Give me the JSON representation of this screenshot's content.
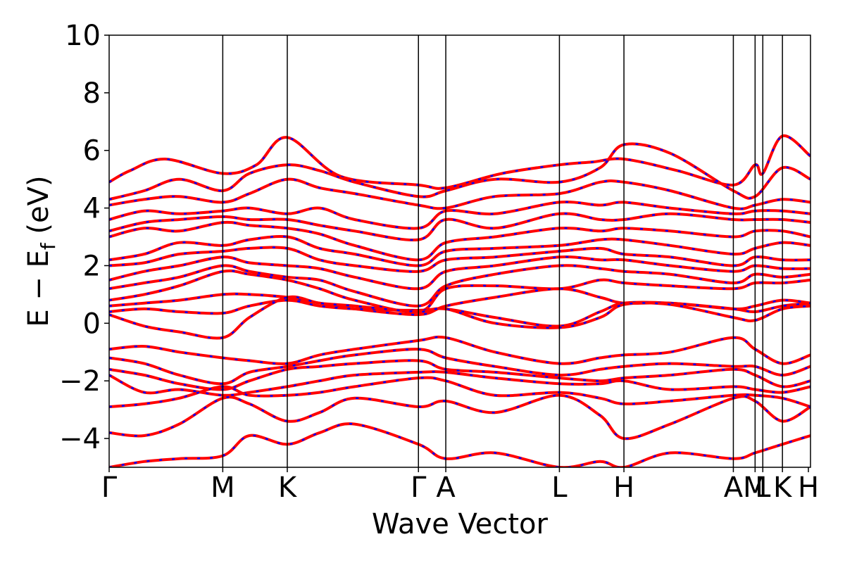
{
  "chart_data": {
    "type": "line",
    "title": "",
    "xlabel": "Wave Vector",
    "ylabel_parts": {
      "lead": "E − E",
      "sub": "f",
      "tail": " (eV)"
    },
    "ylim": [
      -5,
      10
    ],
    "xlim": [
      0,
      1
    ],
    "yticks": [
      -4,
      -2,
      0,
      2,
      4,
      6,
      8,
      10
    ],
    "ytick_labels": [
      "−4",
      "−2",
      "0",
      "2",
      "4",
      "6",
      "8",
      "10"
    ],
    "kpoints": [
      {
        "label": "Γ",
        "x": 0.0
      },
      {
        "label": "M",
        "x": 0.162
      },
      {
        "label": "K",
        "x": 0.254
      },
      {
        "label": "Γ",
        "x": 0.441
      },
      {
        "label": "A",
        "x": 0.48
      },
      {
        "label": "L",
        "x": 0.642
      },
      {
        "label": "H",
        "x": 0.734
      },
      {
        "label": "A",
        "x": 0.89
      },
      {
        "label": "M",
        "x": 0.921
      },
      {
        "label": "L",
        "x": 0.932
      },
      {
        "label": "K",
        "x": 0.96
      },
      {
        "label": "H",
        "x": 0.997
      }
    ],
    "colors": {
      "band_line": "#ff0000",
      "band_dash": "#0000ff",
      "kpoint_line": "#000000",
      "frame": "#000000"
    },
    "series": [
      {
        "x": [
          0,
          0.03,
          0.08,
          0.162,
          0.21,
          0.254,
          0.33,
          0.441,
          0.48,
          0.56,
          0.642,
          0.69,
          0.734,
          0.81,
          0.89,
          0.921,
          0.932,
          0.96,
          1.0
        ],
        "y": [
          4.9,
          5.3,
          5.7,
          5.2,
          5.5,
          6.45,
          5.1,
          4.8,
          4.7,
          5.2,
          5.5,
          5.6,
          5.7,
          5.3,
          4.8,
          5.5,
          5.2,
          6.5,
          5.8
        ]
      },
      {
        "x": [
          0,
          0.05,
          0.1,
          0.162,
          0.2,
          0.254,
          0.3,
          0.35,
          0.441,
          0.48,
          0.55,
          0.642,
          0.7,
          0.734,
          0.8,
          0.89,
          0.921,
          0.96,
          1.0
        ],
        "y": [
          4.3,
          4.6,
          5.0,
          4.6,
          5.2,
          5.5,
          5.3,
          4.9,
          4.4,
          4.6,
          5.0,
          4.9,
          5.4,
          6.2,
          5.9,
          4.6,
          4.4,
          5.4,
          5.0
        ]
      },
      {
        "x": [
          0,
          0.05,
          0.1,
          0.162,
          0.2,
          0.254,
          0.3,
          0.35,
          0.441,
          0.48,
          0.55,
          0.642,
          0.7,
          0.734,
          0.8,
          0.89,
          0.921,
          0.96,
          1.0
        ],
        "y": [
          4.1,
          4.3,
          4.4,
          4.2,
          4.5,
          5.0,
          4.7,
          4.5,
          4.1,
          4.0,
          4.4,
          4.5,
          4.9,
          4.9,
          4.6,
          4.0,
          4.1,
          4.3,
          4.2
        ]
      },
      {
        "x": [
          0,
          0.05,
          0.1,
          0.162,
          0.2,
          0.254,
          0.3,
          0.35,
          0.441,
          0.48,
          0.55,
          0.642,
          0.7,
          0.734,
          0.8,
          0.89,
          0.921,
          0.96,
          1.0
        ],
        "y": [
          3.6,
          3.9,
          3.8,
          3.9,
          4.0,
          3.8,
          4.0,
          3.6,
          3.3,
          3.9,
          3.8,
          4.2,
          4.1,
          4.2,
          4.0,
          3.8,
          3.9,
          3.9,
          3.8
        ]
      },
      {
        "x": [
          0,
          0.05,
          0.1,
          0.162,
          0.2,
          0.254,
          0.3,
          0.35,
          0.441,
          0.48,
          0.55,
          0.642,
          0.7,
          0.734,
          0.8,
          0.89,
          0.921,
          0.96,
          1.0
        ],
        "y": [
          3.2,
          3.5,
          3.6,
          3.7,
          3.6,
          3.6,
          3.4,
          3.2,
          2.9,
          3.6,
          3.3,
          3.8,
          3.6,
          3.6,
          3.8,
          3.6,
          3.6,
          3.6,
          3.5
        ]
      },
      {
        "x": [
          0,
          0.05,
          0.1,
          0.162,
          0.2,
          0.254,
          0.3,
          0.35,
          0.441,
          0.48,
          0.55,
          0.642,
          0.7,
          0.734,
          0.8,
          0.89,
          0.921,
          0.96,
          1.0
        ],
        "y": [
          3.0,
          3.3,
          3.2,
          3.5,
          3.4,
          3.3,
          3.1,
          2.7,
          2.2,
          2.8,
          3.0,
          3.3,
          3.2,
          3.3,
          3.2,
          3.0,
          3.2,
          3.2,
          3.0
        ]
      },
      {
        "x": [
          0,
          0.05,
          0.1,
          0.162,
          0.2,
          0.254,
          0.3,
          0.35,
          0.441,
          0.48,
          0.55,
          0.642,
          0.7,
          0.734,
          0.8,
          0.89,
          0.921,
          0.96,
          1.0
        ],
        "y": [
          2.2,
          2.4,
          2.8,
          2.7,
          2.9,
          3.0,
          2.6,
          2.4,
          2.0,
          2.5,
          2.6,
          2.7,
          2.9,
          2.9,
          2.7,
          2.4,
          2.6,
          2.8,
          2.7
        ]
      },
      {
        "x": [
          0,
          0.05,
          0.1,
          0.162,
          0.2,
          0.254,
          0.3,
          0.35,
          0.441,
          0.48,
          0.55,
          0.642,
          0.7,
          0.734,
          0.8,
          0.89,
          0.921,
          0.96,
          1.0
        ],
        "y": [
          2.0,
          2.1,
          2.4,
          2.5,
          2.6,
          2.6,
          2.2,
          2.0,
          1.8,
          2.2,
          2.3,
          2.5,
          2.6,
          2.4,
          2.3,
          2.0,
          2.3,
          2.2,
          2.2
        ]
      },
      {
        "x": [
          0,
          0.05,
          0.1,
          0.162,
          0.2,
          0.254,
          0.3,
          0.35,
          0.441,
          0.48,
          0.55,
          0.642,
          0.7,
          0.734,
          0.8,
          0.89,
          0.921,
          0.96,
          1.0
        ],
        "y": [
          1.5,
          1.8,
          2.0,
          2.3,
          2.1,
          2.0,
          1.9,
          1.6,
          1.2,
          1.8,
          2.0,
          2.3,
          2.2,
          2.2,
          2.0,
          1.8,
          2.0,
          1.9,
          1.9
        ]
      },
      {
        "x": [
          0,
          0.05,
          0.1,
          0.162,
          0.2,
          0.254,
          0.3,
          0.35,
          0.441,
          0.48,
          0.55,
          0.642,
          0.7,
          0.734,
          0.8,
          0.89,
          0.921,
          0.96,
          1.0
        ],
        "y": [
          1.2,
          1.4,
          1.6,
          2.0,
          1.8,
          1.6,
          1.5,
          1.1,
          0.6,
          1.3,
          1.7,
          2.0,
          1.9,
          1.8,
          1.7,
          1.4,
          1.7,
          1.6,
          1.7
        ]
      },
      {
        "x": [
          0,
          0.05,
          0.1,
          0.162,
          0.2,
          0.254,
          0.3,
          0.35,
          0.441,
          0.48,
          0.55,
          0.642,
          0.7,
          0.734,
          0.8,
          0.89,
          0.921,
          0.96,
          1.0
        ],
        "y": [
          0.8,
          1.0,
          1.3,
          1.8,
          1.7,
          1.5,
          1.2,
          0.8,
          0.4,
          1.2,
          1.3,
          1.2,
          1.5,
          1.4,
          1.3,
          1.2,
          1.4,
          1.4,
          1.5
        ]
      },
      {
        "x": [
          0,
          0.05,
          0.1,
          0.162,
          0.2,
          0.254,
          0.3,
          0.35,
          0.441,
          0.48,
          0.55,
          0.642,
          0.7,
          0.734,
          0.8,
          0.89,
          0.921,
          0.96,
          1.0
        ],
        "y": [
          0.6,
          0.7,
          0.8,
          1.0,
          1.0,
          0.9,
          0.7,
          0.5,
          0.3,
          0.6,
          0.9,
          1.2,
          0.9,
          0.7,
          0.7,
          0.5,
          0.6,
          0.8,
          0.7
        ]
      },
      {
        "x": [
          0,
          0.05,
          0.1,
          0.162,
          0.2,
          0.254,
          0.3,
          0.35,
          0.441,
          0.48,
          0.55,
          0.642,
          0.7,
          0.734,
          0.8,
          0.89,
          0.921,
          0.96,
          1.0
        ],
        "y": [
          0.4,
          0.5,
          0.4,
          0.35,
          0.6,
          0.8,
          0.6,
          0.5,
          0.45,
          0.5,
          0.2,
          -0.1,
          0.4,
          0.7,
          0.7,
          0.5,
          0.4,
          0.6,
          0.7
        ]
      },
      {
        "x": [
          0,
          0.05,
          0.1,
          0.162,
          0.2,
          0.254,
          0.3,
          0.35,
          0.441,
          0.48,
          0.55,
          0.642,
          0.7,
          0.734,
          0.8,
          0.89,
          0.921,
          0.96,
          1.0
        ],
        "y": [
          0.3,
          -0.1,
          -0.3,
          -0.5,
          0.2,
          0.9,
          0.7,
          0.6,
          0.4,
          0.5,
          0.0,
          -0.15,
          0.2,
          0.65,
          0.65,
          0.2,
          0.1,
          0.5,
          0.6
        ]
      },
      {
        "x": [
          0,
          0.05,
          0.1,
          0.162,
          0.2,
          0.254,
          0.3,
          0.35,
          0.441,
          0.48,
          0.55,
          0.642,
          0.7,
          0.734,
          0.8,
          0.89,
          0.921,
          0.96,
          1.0
        ],
        "y": [
          -0.9,
          -0.8,
          -1.0,
          -1.2,
          -1.3,
          -1.4,
          -1.1,
          -0.9,
          -0.6,
          -0.5,
          -1.0,
          -1.4,
          -1.2,
          -1.1,
          -1.0,
          -0.5,
          -0.9,
          -1.4,
          -1.1
        ]
      },
      {
        "x": [
          0,
          0.05,
          0.1,
          0.162,
          0.2,
          0.254,
          0.3,
          0.35,
          0.441,
          0.48,
          0.55,
          0.642,
          0.7,
          0.734,
          0.8,
          0.89,
          0.921,
          0.96,
          1.0
        ],
        "y": [
          -1.2,
          -1.4,
          -1.8,
          -2.1,
          -1.7,
          -1.5,
          -1.3,
          -1.1,
          -0.9,
          -1.2,
          -1.5,
          -1.8,
          -1.6,
          -1.5,
          -1.4,
          -1.5,
          -1.5,
          -1.8,
          -1.5
        ]
      },
      {
        "x": [
          0,
          0.05,
          0.1,
          0.162,
          0.2,
          0.254,
          0.3,
          0.35,
          0.441,
          0.48,
          0.55,
          0.642,
          0.7,
          0.734,
          0.8,
          0.89,
          0.921,
          0.96,
          1.0
        ],
        "y": [
          -1.6,
          -1.8,
          -2.1,
          -2.3,
          -2.0,
          -1.6,
          -1.5,
          -1.4,
          -1.3,
          -1.6,
          -1.7,
          -1.9,
          -2.0,
          -1.9,
          -1.8,
          -1.6,
          -1.8,
          -2.2,
          -2.0
        ]
      },
      {
        "x": [
          0,
          0.05,
          0.1,
          0.162,
          0.2,
          0.254,
          0.3,
          0.35,
          0.441,
          0.48,
          0.55,
          0.642,
          0.7,
          0.734,
          0.8,
          0.89,
          0.921,
          0.96,
          1.0
        ],
        "y": [
          -1.8,
          -2.4,
          -2.3,
          -2.5,
          -2.4,
          -2.2,
          -2.0,
          -1.8,
          -1.7,
          -1.7,
          -1.9,
          -2.1,
          -2.1,
          -2.0,
          -2.3,
          -2.2,
          -2.3,
          -2.4,
          -2.2
        ]
      },
      {
        "x": [
          0,
          0.05,
          0.1,
          0.162,
          0.2,
          0.254,
          0.3,
          0.35,
          0.441,
          0.48,
          0.55,
          0.642,
          0.7,
          0.734,
          0.8,
          0.89,
          0.921,
          0.96,
          1.0
        ],
        "y": [
          -2.9,
          -2.8,
          -2.6,
          -2.2,
          -2.5,
          -2.5,
          -2.4,
          -2.2,
          -1.9,
          -2.0,
          -2.5,
          -2.4,
          -2.6,
          -2.8,
          -2.7,
          -2.5,
          -2.5,
          -2.6,
          -2.9
        ]
      },
      {
        "x": [
          0,
          0.05,
          0.1,
          0.162,
          0.2,
          0.254,
          0.3,
          0.35,
          0.441,
          0.48,
          0.55,
          0.642,
          0.7,
          0.734,
          0.8,
          0.89,
          0.921,
          0.96,
          1.0
        ],
        "y": [
          -3.8,
          -3.9,
          -3.5,
          -2.6,
          -2.8,
          -3.4,
          -3.1,
          -2.6,
          -2.9,
          -2.7,
          -3.1,
          -2.5,
          -3.2,
          -4.0,
          -3.5,
          -2.6,
          -2.7,
          -3.4,
          -2.9
        ]
      },
      {
        "x": [
          0,
          0.05,
          0.1,
          0.162,
          0.2,
          0.254,
          0.3,
          0.35,
          0.441,
          0.48,
          0.55,
          0.642,
          0.7,
          0.734,
          0.8,
          0.89,
          0.921,
          0.96,
          1.0
        ],
        "y": [
          -5.0,
          -4.8,
          -4.7,
          -4.6,
          -3.9,
          -4.2,
          -3.8,
          -3.5,
          -4.2,
          -4.7,
          -4.5,
          -5.0,
          -4.8,
          -5.0,
          -4.5,
          -4.7,
          -4.5,
          -4.2,
          -3.9
        ]
      }
    ]
  }
}
